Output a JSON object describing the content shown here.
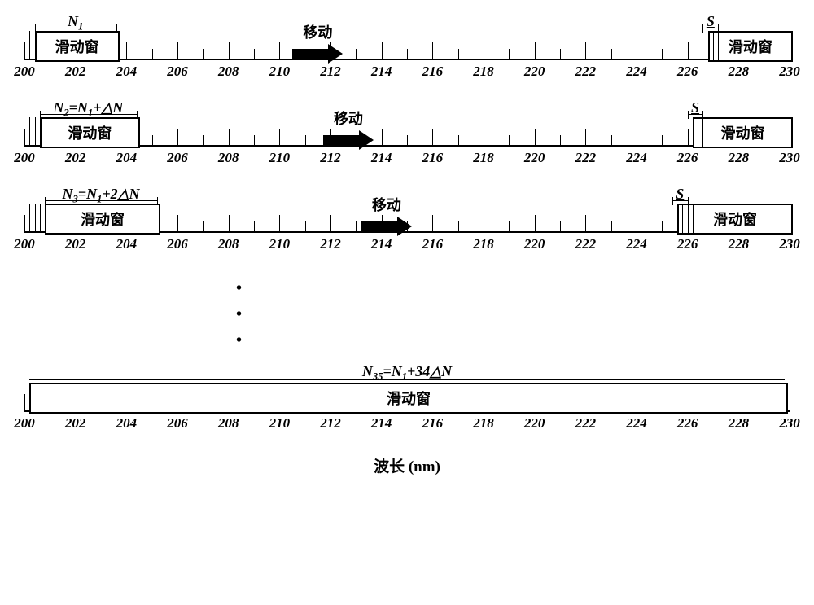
{
  "axis": {
    "xmin": 200,
    "xmax": 230,
    "majorTicks": [
      200,
      202,
      204,
      206,
      208,
      210,
      212,
      214,
      216,
      218,
      220,
      222,
      224,
      226,
      228,
      230
    ],
    "minorStep": 1,
    "leftPx": 20,
    "rightPx": 960,
    "baselineY": 52,
    "majorTickH": 20,
    "minorTickH": 12,
    "labelY": 58,
    "windowYTop": 18,
    "windowH": 34,
    "lineColor": "#000000",
    "background": "#ffffff"
  },
  "rows": [
    {
      "nLabelHtml": "N<sub class='sub'>1</sub>",
      "nDimFrom": 200.4,
      "nDimTo": 203.6,
      "leftWindow": {
        "from": 200.4,
        "to": 203.6,
        "label": "滑动窗"
      },
      "leftMarkers": [
        200.2,
        200.4
      ],
      "rightWindow": {
        "from": 226.8,
        "to": 230.0,
        "label": "滑动窗"
      },
      "rightMarkers": [
        227.0,
        227.2
      ],
      "sLabel": "S",
      "sLabelX": 226.9,
      "sDimFrom": 226.6,
      "sDimTo": 227.2,
      "arrowX": 211.5,
      "moveLabel": "移动"
    },
    {
      "nLabelHtml": "N<sub class='sub'>2</sub>=N<sub class='sub'>1</sub>+△N",
      "nDimFrom": 200.6,
      "nDimTo": 204.4,
      "leftWindow": {
        "from": 200.6,
        "to": 204.4,
        "label": "滑动窗"
      },
      "leftMarkers": [
        200.2,
        200.4
      ],
      "rightWindow": {
        "from": 226.2,
        "to": 230.0,
        "label": "滑动窗"
      },
      "rightMarkers": [
        226.4,
        226.6
      ],
      "sLabel": "S",
      "sLabelX": 226.3,
      "sDimFrom": 226.0,
      "sDimTo": 226.6,
      "arrowX": 212.7,
      "moveLabel": "移动"
    },
    {
      "nLabelHtml": "N<sub class='sub'>3</sub>=N<sub class='sub'>1</sub>+2△N",
      "nDimFrom": 200.8,
      "nDimTo": 205.2,
      "leftWindow": {
        "from": 200.8,
        "to": 205.2,
        "label": "滑动窗"
      },
      "leftMarkers": [
        200.2,
        200.4,
        200.6
      ],
      "rightWindow": {
        "from": 225.6,
        "to": 230.0,
        "label": "滑动窗"
      },
      "rightMarkers": [
        225.8,
        226.0,
        226.2
      ],
      "sLabel": "S",
      "sLabelX": 225.7,
      "sDimFrom": 225.4,
      "sDimTo": 226.0,
      "arrowX": 214.2,
      "moveLabel": "移动"
    }
  ],
  "lastRow": {
    "nLabelHtml": "N<sub class='sub'>35</sub>=N<sub class='sub'>1</sub>+34△N",
    "window": {
      "from": 200.2,
      "to": 229.8,
      "label": "滑动窗"
    },
    "markers": []
  },
  "xlabel": "波长 (nm)",
  "arrow": {
    "bodyW": 44,
    "bodyH": 12,
    "headW": 18,
    "headH": 24,
    "color": "#000000"
  }
}
